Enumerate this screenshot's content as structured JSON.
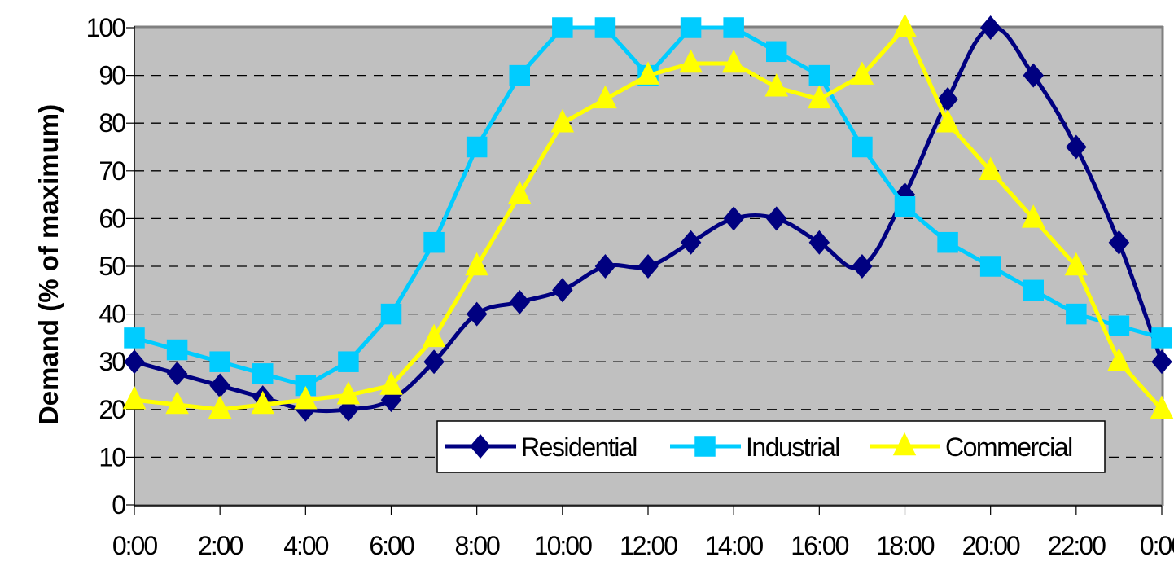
{
  "chart_data": {
    "type": "line",
    "title": "",
    "xlabel": "",
    "ylabel": "Demand (% of maximum)",
    "ylim": [
      0,
      100
    ],
    "yticks": [
      0,
      10,
      20,
      30,
      40,
      50,
      60,
      70,
      80,
      90,
      100
    ],
    "xtick_labels": [
      "0:00",
      "2:00",
      "4:00",
      "6:00",
      "8:00",
      "10:00",
      "12:00",
      "14:00",
      "16:00",
      "18:00",
      "20:00",
      "22:00",
      "0:00"
    ],
    "x": [
      "0:00",
      "1:00",
      "2:00",
      "3:00",
      "4:00",
      "5:00",
      "6:00",
      "7:00",
      "8:00",
      "9:00",
      "10:00",
      "11:00",
      "12:00",
      "13:00",
      "14:00",
      "15:00",
      "16:00",
      "17:00",
      "18:00",
      "19:00",
      "20:00",
      "21:00",
      "22:00",
      "23:00",
      "0:00"
    ],
    "grid": {
      "horizontal": true,
      "style": "dashed",
      "color": "#000000"
    },
    "plot_background": "#C0C0C0",
    "legend_position": "lower-right-inside",
    "series": [
      {
        "name": "Residential",
        "color": "#000080",
        "marker": "diamond",
        "smooth": true,
        "values": [
          30,
          27.5,
          25,
          22.5,
          20,
          20,
          22,
          30,
          40,
          42.5,
          45,
          50,
          50,
          55,
          60,
          60,
          55,
          50,
          65,
          85,
          100,
          90,
          75,
          55,
          30
        ]
      },
      {
        "name": "Industrial",
        "color": "#00CCFF",
        "marker": "square",
        "smooth": false,
        "values": [
          35,
          32.5,
          30,
          27.5,
          25,
          30,
          40,
          55,
          75,
          90,
          100,
          100,
          90,
          100,
          100,
          95,
          90,
          75,
          62.5,
          55,
          50,
          45,
          40,
          37.5,
          35
        ]
      },
      {
        "name": "Commercial",
        "color": "#FFFF00",
        "marker": "triangle",
        "smooth": false,
        "values": [
          22,
          21,
          20,
          21,
          22,
          23,
          25,
          35,
          50,
          65,
          80,
          85,
          90,
          92.5,
          92.5,
          87.5,
          85,
          90,
          100,
          80,
          70,
          60,
          50,
          30,
          20
        ]
      }
    ]
  }
}
